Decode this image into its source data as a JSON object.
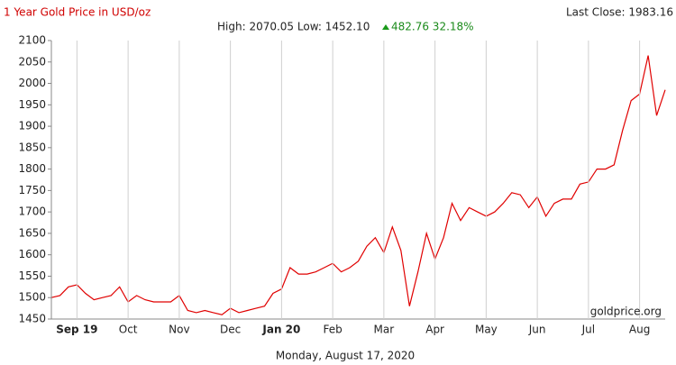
{
  "chart_data": {
    "type": "line",
    "title": "1 Year Gold Price in USD/oz",
    "last_close": "Last Close: 1983.16",
    "high_low": "High: 2070.05 Low: 1452.10",
    "change": "482.76 32.18%",
    "watermark": "goldprice.org",
    "date_label": "Monday, August 17, 2020",
    "categories": [
      null,
      null,
      null,
      "Sep 19",
      null,
      null,
      null,
      null,
      null,
      "Oct",
      null,
      null,
      null,
      null,
      null,
      "Nov",
      null,
      null,
      null,
      null,
      null,
      "Dec",
      null,
      null,
      null,
      null,
      null,
      "Jan 20",
      null,
      null,
      null,
      null,
      null,
      "Feb",
      null,
      null,
      null,
      null,
      null,
      "Mar",
      null,
      null,
      null,
      null,
      null,
      "Apr",
      null,
      null,
      null,
      null,
      null,
      "May",
      null,
      null,
      null,
      null,
      null,
      "Jun",
      null,
      null,
      null,
      null,
      null,
      "Jul",
      null,
      null,
      null,
      null,
      null,
      "Aug",
      null,
      null,
      null
    ],
    "series": [
      {
        "name": "Gold",
        "color": "#e00000",
        "values": [
          1500,
          1505,
          1525,
          1530,
          1510,
          1495,
          1500,
          1505,
          1525,
          1490,
          1505,
          1495,
          1490,
          1490,
          1490,
          1505,
          1470,
          1465,
          1470,
          1465,
          1460,
          1475,
          1465,
          1470,
          1475,
          1480,
          1510,
          1520,
          1570,
          1555,
          1555,
          1560,
          1570,
          1580,
          1560,
          1570,
          1585,
          1620,
          1640,
          1605,
          1665,
          1610,
          1480,
          1560,
          1650,
          1590,
          1640,
          1720,
          1680,
          1710,
          1700,
          1690,
          1700,
          1720,
          1745,
          1740,
          1710,
          1735,
          1690,
          1720,
          1730,
          1730,
          1765,
          1770,
          1800,
          1800,
          1810,
          1890,
          1960,
          1975,
          2065,
          1925,
          1985
        ]
      }
    ],
    "ylim": [
      1450,
      2100
    ],
    "yticks": [
      1450,
      1500,
      1550,
      1600,
      1650,
      1700,
      1750,
      1800,
      1850,
      1900,
      1950,
      2000,
      2050,
      2100
    ],
    "grid": true
  }
}
